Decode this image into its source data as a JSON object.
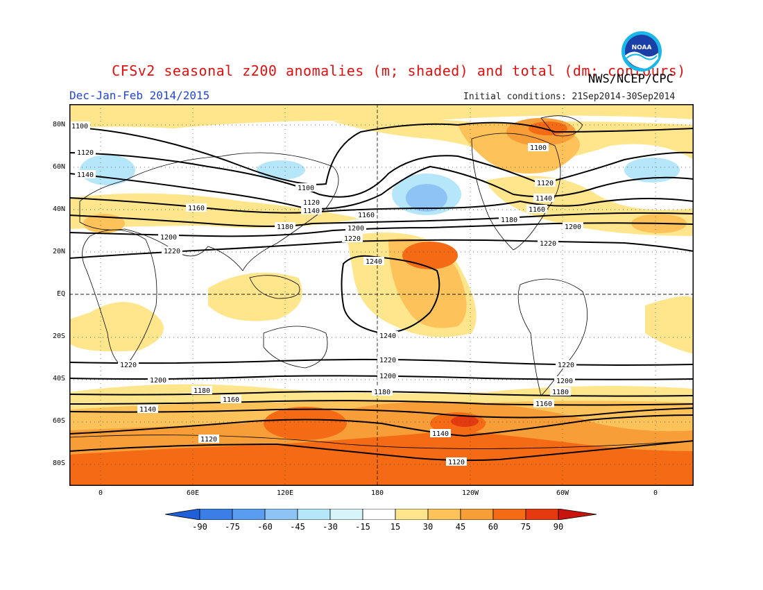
{
  "title": "CFSv2 seasonal z200 anomalies (m; shaded) and total (dm; contours)",
  "organization": "NWS/NCEP/CPC",
  "logo_text": "NOAA",
  "season": "Dec-Jan-Feb 2014/2015",
  "initial_conditions": "Initial conditions: 21Sep2014-30Sep2014",
  "map": {
    "y_axis_labels": [
      "80N",
      "60N",
      "40N",
      "20N",
      "EQ",
      "20S",
      "40S",
      "60S",
      "80S"
    ],
    "x_axis_labels": [
      "0",
      "60E",
      "120E",
      "180",
      "120W",
      "60W",
      "0"
    ],
    "contour_labels": [
      "1100",
      "1120",
      "1140",
      "1160",
      "1180",
      "1200",
      "1220",
      "1240"
    ],
    "anomaly_colors": {
      "neg90": "#1f5fd8",
      "neg75": "#3a7ee6",
      "neg60": "#5a9df0",
      "neg45": "#8ec4f5",
      "neg30": "#b6e6fa",
      "neutral": "#ffffff",
      "pos15": "#ffe58c",
      "pos30": "#fdc35a",
      "pos45": "#f89e38",
      "pos60": "#f56a14",
      "pos75": "#e53a10",
      "pos90": "#c8140c"
    }
  },
  "colorbar": {
    "labels": [
      "-90",
      "-75",
      "-60",
      "-45",
      "-30",
      "-15",
      "15",
      "30",
      "45",
      "60",
      "75",
      "90"
    ]
  }
}
